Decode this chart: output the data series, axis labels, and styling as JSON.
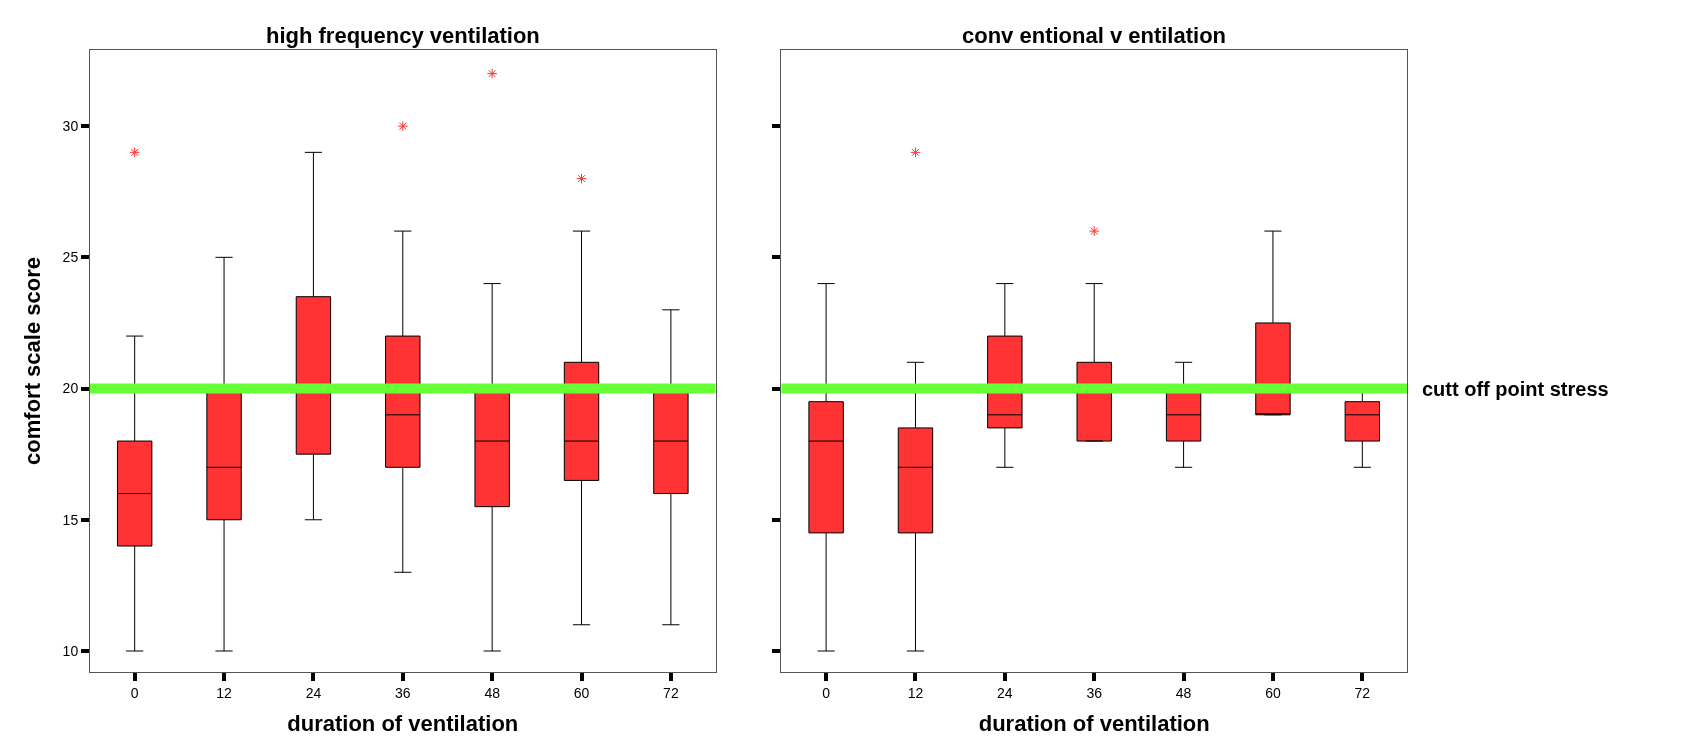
{
  "chart_data": [
    {
      "type": "box",
      "title": "high frequency ventilation",
      "xlabel": "duration of ventilation",
      "ylabel": "comfort scale score",
      "categories": [
        "0",
        "12",
        "24",
        "36",
        "48",
        "60",
        "72"
      ],
      "ylim": [
        9.2,
        32.9
      ],
      "yticks": [
        10,
        15,
        20,
        25,
        30
      ],
      "series": [
        {
          "color": "#ff3333",
          "boxes": [
            {
              "low": 10,
              "q1": 14,
              "median": 16,
              "q3": 18,
              "high": 22,
              "outliers": [
                29
              ]
            },
            {
              "low": 10,
              "q1": 15,
              "median": 17,
              "q3": 20,
              "high": 25
            },
            {
              "low": 15,
              "q1": 17.5,
              "median": 20,
              "q3": 23.5,
              "high": 29
            },
            {
              "low": 13,
              "q1": 17,
              "median": 19,
              "q3": 22,
              "high": 26,
              "outliers": [
                30
              ]
            },
            {
              "low": 10,
              "q1": 15.5,
              "median": 18,
              "q3": 20,
              "high": 24,
              "outliers": [
                32
              ]
            },
            {
              "low": 11,
              "q1": 16.5,
              "median": 18,
              "q3": 21,
              "high": 26,
              "outliers": [
                28
              ]
            },
            {
              "low": 11,
              "q1": 16,
              "median": 18,
              "q3": 20,
              "high": 23
            }
          ]
        }
      ],
      "ref_lines": [
        {
          "axis": "y",
          "value": 20,
          "color": "#66ff33"
        }
      ]
    },
    {
      "type": "box",
      "title": "conv entional v entilation",
      "xlabel": "duration of ventilation",
      "categories": [
        "0",
        "12",
        "24",
        "36",
        "48",
        "60",
        "72"
      ],
      "ylim": [
        9.2,
        32.9
      ],
      "yticks": [
        10,
        15,
        20,
        25,
        30
      ],
      "tick_labels": "x",
      "series": [
        {
          "color": "#ff3333",
          "boxes": [
            {
              "low": 10,
              "q1": 14.5,
              "median": 18,
              "q3": 19.5,
              "high": 24
            },
            {
              "low": 10,
              "q1": 14.5,
              "median": 17,
              "q3": 18.5,
              "high": 21,
              "outliers": [
                29
              ]
            },
            {
              "low": 17,
              "q1": 18.5,
              "median": 19,
              "q3": 22,
              "high": 24
            },
            {
              "low": 18,
              "q1": 18,
              "median": 20,
              "q3": 21,
              "high": 24,
              "outliers": [
                26
              ]
            },
            {
              "low": 17,
              "q1": 18,
              "median": 19,
              "q3": 20,
              "high": 21
            },
            {
              "low": 19,
              "q1": 19,
              "median": 19,
              "q3": 22.5,
              "high": 26
            },
            {
              "low": 17,
              "q1": 18,
              "median": 19,
              "q3": 19.5,
              "high": 20
            }
          ]
        }
      ],
      "ref_lines": [
        {
          "axis": "y",
          "value": 20,
          "label": "cutt off point stress",
          "color": "#66ff33"
        }
      ]
    }
  ]
}
